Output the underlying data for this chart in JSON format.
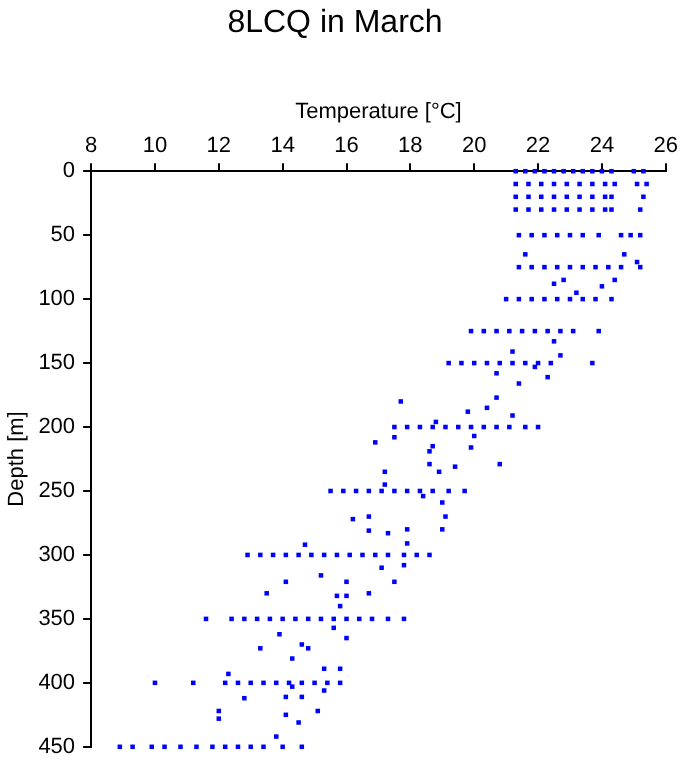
{
  "chart_data": {
    "type": "scatter",
    "title": "8LCQ in March",
    "xlabel": "Temperature [°C]",
    "ylabel": "Depth [m]",
    "xlim": [
      8,
      26
    ],
    "xticks": [
      8,
      10,
      12,
      14,
      16,
      18,
      20,
      22,
      24,
      26
    ],
    "ylim": [
      450,
      0
    ],
    "yticks": [
      0,
      50,
      100,
      150,
      200,
      250,
      300,
      350,
      400,
      450
    ],
    "grid": false,
    "legend": false,
    "marker": "square",
    "series": [
      {
        "color": "#0000ff",
        "x": [
          21.3,
          21.6,
          21.9,
          22.2,
          22.5,
          22.8,
          23.1,
          23.4,
          23.7,
          24.0,
          24.3,
          25.0,
          25.3
        ],
        "values": [
          0,
          0,
          0,
          0,
          0,
          0,
          0,
          0,
          0,
          0,
          0,
          0,
          0
        ]
      },
      {
        "color": "#0000ff",
        "x": [
          21.3,
          21.7,
          22.1,
          22.5,
          22.9,
          23.3,
          23.7,
          24.1,
          24.4,
          25.1,
          25.4
        ],
        "values": [
          10,
          10,
          10,
          10,
          10,
          10,
          10,
          10,
          10,
          10,
          10
        ]
      },
      {
        "color": "#0000ff",
        "x": [
          21.3,
          21.7,
          22.1,
          22.5,
          22.9,
          23.3,
          23.7,
          24.1,
          24.3,
          25.3
        ],
        "values": [
          20,
          20,
          20,
          20,
          20,
          20,
          20,
          20,
          20,
          20
        ]
      },
      {
        "color": "#0000ff",
        "x": [
          21.3,
          21.7,
          22.1,
          22.5,
          22.9,
          23.3,
          23.7,
          24.1,
          24.3,
          25.2
        ],
        "values": [
          30,
          30,
          30,
          30,
          30,
          30,
          30,
          30,
          30,
          30
        ]
      },
      {
        "color": "#0000ff",
        "x": [
          21.4,
          21.8,
          22.2,
          22.6,
          23.0,
          23.4,
          23.9,
          24.6,
          24.9,
          25.2
        ],
        "values": [
          50,
          50,
          50,
          50,
          50,
          50,
          50,
          50,
          50,
          50
        ]
      },
      {
        "color": "#0000ff",
        "x": [
          21.4,
          21.8,
          22.2,
          22.6,
          23.0,
          23.4,
          23.8,
          24.2,
          24.6,
          25.2
        ],
        "values": [
          75,
          75,
          75,
          75,
          75,
          75,
          75,
          75,
          75,
          75
        ]
      },
      {
        "color": "#0000ff",
        "x": [
          21.0,
          21.4,
          21.8,
          22.2,
          22.6,
          23.0,
          23.4,
          23.8,
          24.3
        ],
        "values": [
          100,
          100,
          100,
          100,
          100,
          100,
          100,
          100,
          100
        ]
      },
      {
        "color": "#0000ff",
        "x": [
          19.9,
          20.3,
          20.7,
          21.1,
          21.5,
          21.9,
          22.3,
          22.7,
          23.1,
          23.9
        ],
        "values": [
          125,
          125,
          125,
          125,
          125,
          125,
          125,
          125,
          125,
          125
        ]
      },
      {
        "color": "#0000ff",
        "x": [
          19.2,
          19.6,
          20.0,
          20.4,
          20.8,
          21.2,
          21.6,
          22.0,
          22.4,
          23.7
        ],
        "values": [
          150,
          150,
          150,
          150,
          150,
          150,
          150,
          150,
          150,
          150
        ]
      },
      {
        "color": "#0000ff",
        "x": [
          17.5,
          17.9,
          18.3,
          18.7,
          19.1,
          19.5,
          19.9,
          20.3,
          20.7,
          21.1,
          21.6,
          22.0
        ],
        "values": [
          200,
          200,
          200,
          200,
          200,
          200,
          200,
          200,
          200,
          200,
          200,
          200
        ]
      },
      {
        "color": "#0000ff",
        "x": [
          15.5,
          15.9,
          16.3,
          16.7,
          17.1,
          17.5,
          17.9,
          18.3,
          18.7,
          19.2,
          19.7
        ],
        "values": [
          250,
          250,
          250,
          250,
          250,
          250,
          250,
          250,
          250,
          250,
          250
        ]
      },
      {
        "color": "#0000ff",
        "x": [
          12.9,
          13.3,
          13.7,
          14.1,
          14.5,
          14.9,
          15.3,
          15.7,
          16.1,
          16.5,
          16.9,
          17.3,
          17.8,
          18.2,
          18.6
        ],
        "values": [
          300,
          300,
          300,
          300,
          300,
          300,
          300,
          300,
          300,
          300,
          300,
          300,
          300,
          300,
          300
        ]
      },
      {
        "color": "#0000ff",
        "x": [
          11.6,
          12.4,
          12.8,
          13.2,
          13.6,
          14.0,
          14.4,
          14.8,
          15.2,
          15.6,
          16.0,
          16.4,
          16.8,
          17.3,
          17.8
        ],
        "values": [
          350,
          350,
          350,
          350,
          350,
          350,
          350,
          350,
          350,
          350,
          350,
          350,
          350,
          350,
          350
        ]
      },
      {
        "color": "#0000ff",
        "x": [
          10.0,
          11.2,
          12.2,
          12.6,
          13.0,
          13.4,
          13.8,
          14.2,
          14.6,
          15.0,
          15.4,
          15.8
        ],
        "values": [
          400,
          400,
          400,
          400,
          400,
          400,
          400,
          400,
          400,
          400,
          400,
          400
        ]
      },
      {
        "color": "#0000ff",
        "x": [
          8.9,
          9.3,
          9.9,
          10.3,
          10.8,
          11.3,
          11.8,
          12.2,
          12.6,
          13.0,
          13.4,
          14.0,
          14.6
        ],
        "values": [
          450,
          450,
          450,
          450,
          450,
          450,
          450,
          450,
          450,
          450,
          450,
          450,
          450
        ]
      },
      {
        "color": "#0000ff",
        "x": [
          21.6,
          22.8,
          22.5,
          23.2,
          24.0,
          24.4,
          24.7,
          25.1,
          21.2,
          20.7,
          22.3,
          21.9,
          22.7,
          22.5,
          21.4,
          17.7,
          20.7,
          20.4,
          21.2,
          19.8,
          18.8,
          16.9,
          17.5,
          20.0,
          19.9,
          18.7,
          18.6,
          20.8,
          19.4,
          18.6,
          18.9,
          17.2,
          17.2,
          18.4,
          19.0,
          19.1,
          16.2,
          16.7,
          16.7,
          17.3,
          17.9,
          19.0,
          17.9,
          14.7,
          17.1,
          17.8
        ],
        "values": [
          65,
          85,
          88,
          95,
          90,
          85,
          65,
          71,
          141,
          158,
          161,
          153,
          144,
          133,
          166,
          180,
          177,
          185,
          191,
          188,
          196,
          212,
          208,
          207,
          216,
          215,
          219,
          229,
          231,
          229,
          235,
          235,
          245,
          254,
          259,
          270,
          272,
          270,
          281,
          283,
          280,
          280,
          291,
          292,
          310,
          308
        ]
      },
      {
        "color": "#0000ff",
        "x": [
          15.2,
          13.5,
          14.1,
          15.7,
          16.0,
          16.0,
          15.8,
          16.7,
          17.5,
          13.9,
          16.0,
          13.3,
          14.6,
          14.8,
          14.3,
          15.6,
          12.3,
          15.3,
          15.8,
          12.8,
          14.1,
          14.6,
          15.3,
          14.3,
          12.0,
          12.0,
          14.1,
          14.5,
          15.1,
          13.8
        ],
        "values": [
          316,
          330,
          321,
          332,
          321,
          332,
          340,
          330,
          321,
          362,
          365,
          373,
          370,
          373,
          381,
          357,
          393,
          389,
          389,
          412,
          411,
          411,
          406,
          403,
          422,
          428,
          425,
          431,
          422,
          442
        ]
      }
    ]
  }
}
